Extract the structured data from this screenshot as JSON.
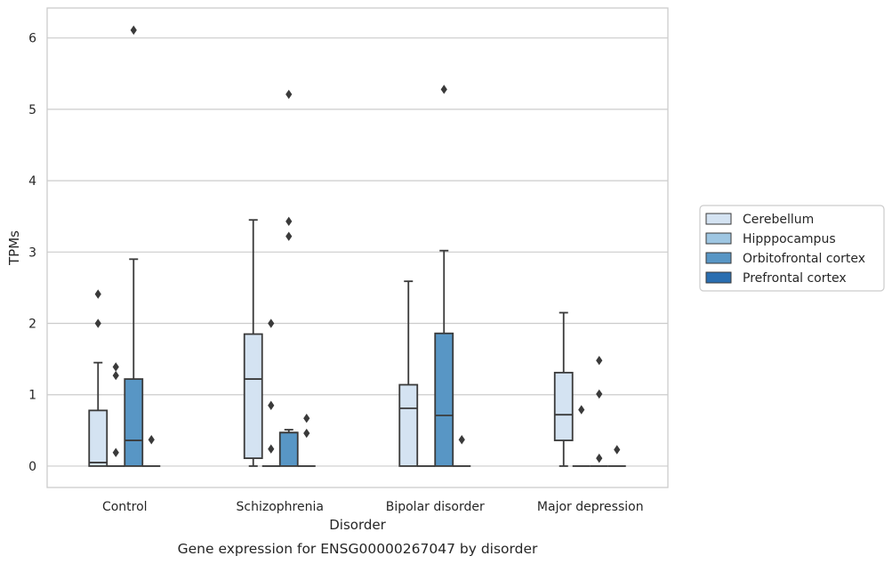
{
  "chart_data": {
    "type": "box",
    "caption": "Gene expression for ENSG00000267047 by disorder",
    "xlabel": "Disorder",
    "ylabel": "TPMs",
    "ylim": [
      -0.3,
      6.42
    ],
    "yticks": [
      0,
      1,
      2,
      3,
      4,
      5,
      6
    ],
    "grid": "horizontal",
    "legend_placement": "right",
    "categories": [
      "Control",
      "Schizophrenia",
      "Bipolar disorder",
      "Major depression"
    ],
    "series": [
      {
        "name": "Cerebellum",
        "color": "#d4e3f2",
        "boxes": [
          {
            "q1": 0.0,
            "median": 0.05,
            "q3": 0.78,
            "whisker_low": 0.0,
            "whisker_high": 1.45,
            "outliers": [
              2.0,
              2.41
            ]
          },
          {
            "q1": 0.11,
            "median": 1.22,
            "q3": 1.85,
            "whisker_low": 0.0,
            "whisker_high": 3.45,
            "outliers": []
          },
          {
            "q1": 0.0,
            "median": 0.81,
            "q3": 1.14,
            "whisker_low": 0.0,
            "whisker_high": 2.59,
            "outliers": []
          },
          {
            "q1": 0.36,
            "median": 0.72,
            "q3": 1.31,
            "whisker_low": 0.0,
            "whisker_high": 2.15,
            "outliers": []
          }
        ]
      },
      {
        "name": "Hipppocampus",
        "color": "#9ec6e2",
        "boxes": [
          {
            "q1": 0.0,
            "median": 0.0,
            "q3": 0.0,
            "whisker_low": 0.0,
            "whisker_high": 0.0,
            "outliers": [
              0.19,
              1.27,
              1.39
            ]
          },
          {
            "q1": 0.0,
            "median": 0.0,
            "q3": 0.0,
            "whisker_low": 0.0,
            "whisker_high": 0.0,
            "outliers": [
              0.24,
              0.85,
              2.0
            ]
          },
          {
            "q1": 0.0,
            "median": 0.0,
            "q3": 0.0,
            "whisker_low": 0.0,
            "whisker_high": 0.0,
            "outliers": []
          },
          {
            "q1": 0.0,
            "median": 0.0,
            "q3": 0.0,
            "whisker_low": 0.0,
            "whisker_high": 0.0,
            "outliers": [
              0.79
            ]
          }
        ]
      },
      {
        "name": "Orbitofrontal cortex",
        "color": "#5896c5",
        "boxes": [
          {
            "q1": 0.0,
            "median": 0.36,
            "q3": 1.22,
            "whisker_low": 0.0,
            "whisker_high": 2.9,
            "outliers": [
              6.11
            ]
          },
          {
            "q1": 0.0,
            "median": 0.47,
            "q3": 0.47,
            "whisker_low": 0.0,
            "whisker_high": 0.51,
            "outliers": [
              3.22,
              3.43,
              5.21
            ]
          },
          {
            "q1": 0.0,
            "median": 0.71,
            "q3": 1.86,
            "whisker_low": 0.0,
            "whisker_high": 3.02,
            "outliers": [
              5.28
            ]
          },
          {
            "q1": 0.0,
            "median": 0.0,
            "q3": 0.0,
            "whisker_low": 0.0,
            "whisker_high": 0.0,
            "outliers": [
              0.11,
              1.01,
              1.48
            ]
          }
        ]
      },
      {
        "name": "Prefrontal cortex",
        "color": "#2a6eb0",
        "boxes": [
          {
            "q1": 0.0,
            "median": 0.0,
            "q3": 0.0,
            "whisker_low": 0.0,
            "whisker_high": 0.0,
            "outliers": [
              0.37
            ]
          },
          {
            "q1": 0.0,
            "median": 0.0,
            "q3": 0.0,
            "whisker_low": 0.0,
            "whisker_high": 0.0,
            "outliers": [
              0.46,
              0.67
            ]
          },
          {
            "q1": 0.0,
            "median": 0.0,
            "q3": 0.0,
            "whisker_low": 0.0,
            "whisker_high": 0.0,
            "outliers": [
              0.37
            ]
          },
          {
            "q1": 0.0,
            "median": 0.0,
            "q3": 0.0,
            "whisker_low": 0.0,
            "whisker_high": 0.0,
            "outliers": [
              0.23
            ]
          }
        ]
      }
    ]
  }
}
